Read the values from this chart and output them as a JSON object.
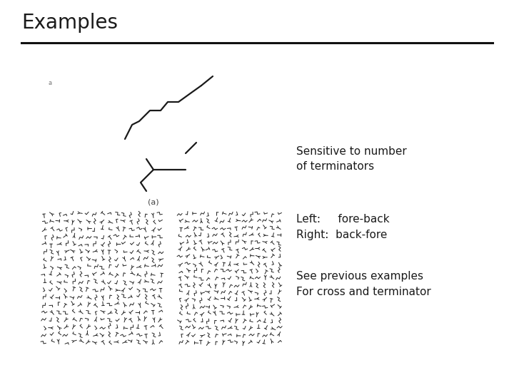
{
  "title": "Examples",
  "title_fontsize": 20,
  "title_fontfamily": "DejaVu Sans",
  "title_fontweight": "normal",
  "bg_color": "#ffffff",
  "line_color": "#1a1a1a",
  "text_color": "#1a1a1a",
  "text1": "Sensitive to number\nof terminators",
  "text2_line1": "Left:     fore-back",
  "text2_line2": "Right:  back-fore",
  "text3_line1": "See previous examples",
  "text3_line2": "For cross and terminator",
  "label_a": "(a)",
  "small_dot": "a",
  "text_fontsize": 11
}
